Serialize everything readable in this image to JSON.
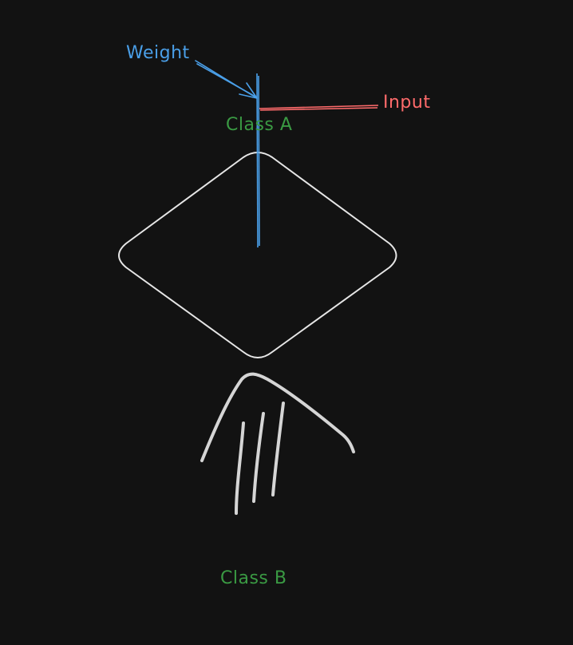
{
  "labels": {
    "weight": "Weight",
    "input": "Input",
    "class_a": "Class A",
    "class_b": "Class B"
  },
  "colors": {
    "background": "#121212",
    "weight": "#4a9fe8",
    "input": "#ff6b6b",
    "class_label": "#3a9a43",
    "stroke": "#e6e6e6"
  }
}
